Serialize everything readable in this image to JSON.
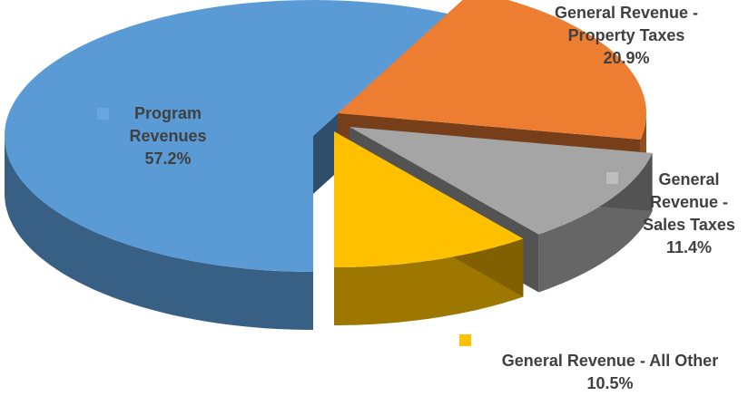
{
  "chart_data": {
    "type": "pie",
    "title": "",
    "slices": [
      {
        "label": "Program Revenues",
        "label_lines": [
          "Program",
          "Revenues"
        ],
        "value": 57.2,
        "value_text": "57.2%",
        "color": "#5B9BD5"
      },
      {
        "label": "General Revenue - Property Taxes",
        "label_lines": [
          "General Revenue -",
          "Property Taxes"
        ],
        "value": 20.9,
        "value_text": "20.9%",
        "color": "#ED7D31"
      },
      {
        "label": "General Revenue - Sales Taxes",
        "label_lines": [
          "General",
          "Revenue -",
          "Sales Taxes"
        ],
        "value": 11.4,
        "value_text": "11.4%",
        "color": "#A5A5A5"
      },
      {
        "label": "General Revenue - All Other",
        "label_lines": [
          "General Revenue - All Other"
        ],
        "value": 10.5,
        "value_text": "10.5%",
        "color": "#FFC000"
      }
    ]
  }
}
